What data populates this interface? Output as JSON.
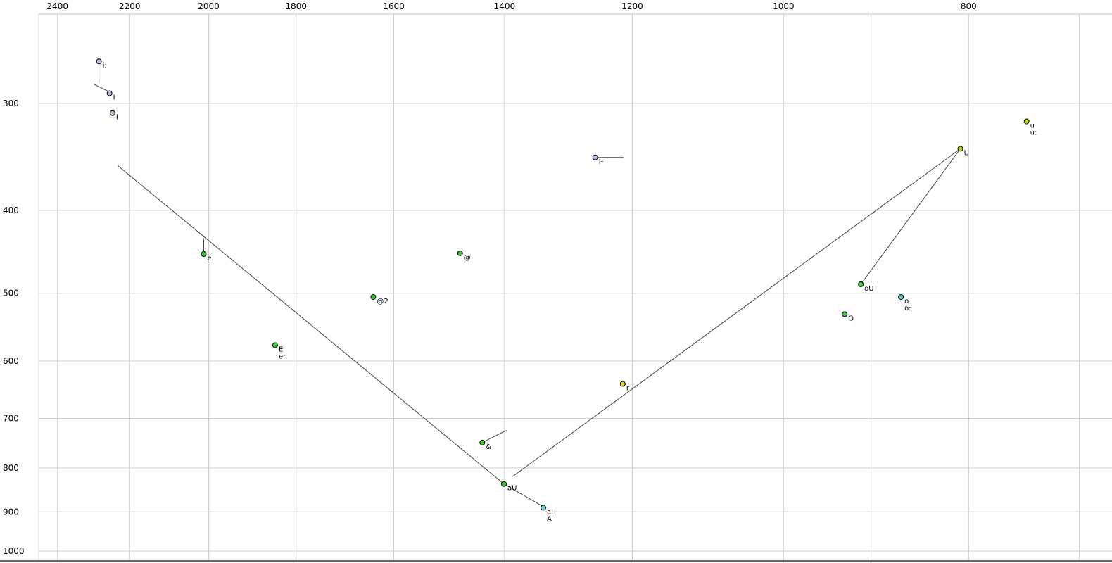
{
  "colors": {
    "background": "#ffffff",
    "grid": "#cccccc",
    "line": "#404040",
    "text": "#000000",
    "point_stroke": "#000000",
    "bottom_edge": "#666666"
  },
  "chart_data": {
    "type": "scatter",
    "title": "",
    "xlabel": "",
    "ylabel": "",
    "x_axis": {
      "scale": "log",
      "reversed": true,
      "range": [
        2455,
        673
      ],
      "tick_values": [
        2400,
        2200,
        2000,
        1800,
        1600,
        1400,
        1200,
        1000,
        800
      ],
      "tick_labels": [
        "2400",
        "2200",
        "2000",
        "1800",
        "1600",
        "1400",
        "1200",
        "1000",
        "800"
      ],
      "grid_values": [
        2400,
        2200,
        2000,
        1800,
        1600,
        1400,
        1200,
        1000,
        900,
        800,
        700
      ]
    },
    "y_axis": {
      "scale": "log",
      "reversed": true,
      "range": [
        236,
        1025
      ],
      "tick_values": [
        300,
        400,
        500,
        600,
        700,
        800,
        900,
        1000
      ],
      "tick_labels": [
        "300",
        "400",
        "500",
        "600",
        "700",
        "800",
        "900",
        "1000"
      ],
      "grid_values": [
        300,
        400,
        500,
        600,
        700,
        800,
        900,
        1000
      ]
    },
    "points": [
      {
        "labels": [
          "i:"
        ],
        "f2": 2283,
        "f1": 268,
        "color": "#b3bfe6"
      },
      {
        "labels": [
          "I"
        ],
        "f2": 2254,
        "f1": 292,
        "color": "#b3bfe6"
      },
      {
        "labels": [
          "I"
        ],
        "f2": 2246,
        "f1": 308,
        "color": "#b3bfe6"
      },
      {
        "labels": [
          "u",
          "u:"
        ],
        "f2": 746,
        "f1": 315,
        "color": "#b8d400"
      },
      {
        "labels": [
          "U"
        ],
        "f2": 808,
        "f1": 339,
        "color": "#b8d400"
      },
      {
        "labels": [
          "I-"
        ],
        "f2": 1255,
        "f1": 347,
        "color": "#b3bfe6"
      },
      {
        "labels": [
          "e"
        ],
        "f2": 2012,
        "f1": 450,
        "color": "#33cc33"
      },
      {
        "labels": [
          "@"
        ],
        "f2": 1477,
        "f1": 449,
        "color": "#33cc33"
      },
      {
        "labels": [
          "@2"
        ],
        "f2": 1640,
        "f1": 505,
        "color": "#33cc33"
      },
      {
        "labels": [
          "oU"
        ],
        "f2": 911,
        "f1": 488,
        "color": "#33cc33"
      },
      {
        "labels": [
          "o",
          "o:"
        ],
        "f2": 868,
        "f1": 505,
        "color": "#5cd6d6"
      },
      {
        "labels": [
          "O"
        ],
        "f2": 929,
        "f1": 529,
        "color": "#33cc33"
      },
      {
        "labels": [
          "E",
          "e:"
        ],
        "f2": 1846,
        "f1": 575,
        "color": "#33cc33"
      },
      {
        "labels": [
          "r-"
        ],
        "f2": 1214,
        "f1": 638,
        "color": "#e6d800"
      },
      {
        "labels": [
          "&"
        ],
        "f2": 1438,
        "f1": 747,
        "color": "#33cc33"
      },
      {
        "labels": [
          "aU"
        ],
        "f2": 1401,
        "f1": 835,
        "color": "#33cc33"
      },
      {
        "labels": [
          "aI",
          "A"
        ],
        "f2": 1336,
        "f1": 890,
        "color": "#5cd6d6"
      }
    ],
    "segments": [
      {
        "from": [
          2283,
          268
        ],
        "to": [
          2283,
          285
        ]
      },
      {
        "from": [
          2297,
          285
        ],
        "to": [
          2254,
          291
        ]
      },
      {
        "from": [
          2012,
          432
        ],
        "to": [
          2012,
          450
        ]
      },
      {
        "from": [
          1255,
          347
        ],
        "to": [
          1213,
          347
        ]
      },
      {
        "from": [
          1438,
          747
        ],
        "to": [
          1397,
          723
        ]
      },
      {
        "from": [
          2231,
          355
        ],
        "to": [
          1401,
          835
        ]
      },
      {
        "from": [
          1386,
          818
        ],
        "to": [
          808,
          339
        ]
      },
      {
        "from": [
          808,
          339
        ],
        "to": [
          911,
          488
        ]
      },
      {
        "from": [
          1401,
          835
        ],
        "to": [
          1338,
          886
        ]
      }
    ]
  }
}
